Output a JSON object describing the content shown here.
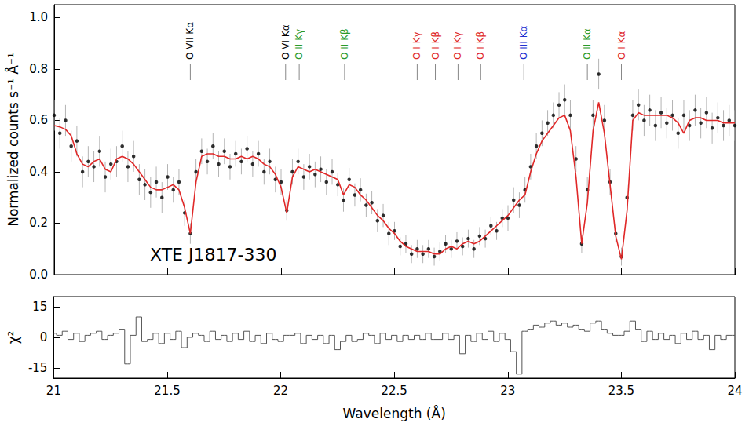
{
  "chart_data": [
    {
      "type": "scatter",
      "y_label": "Normalized counts s⁻¹ Å⁻¹",
      "source": "XTE J1817-330",
      "xlim": [
        21,
        24
      ],
      "xticks": [
        21,
        21.5,
        22,
        22.5,
        23,
        23.5,
        24
      ],
      "ylim": [
        0,
        1.05
      ],
      "yticks": [
        {
          "value": 0,
          "label": "0.0"
        },
        {
          "value": 0.2,
          "label": "0.2"
        },
        {
          "value": 0.4,
          "label": "0.4"
        },
        {
          "value": 0.6,
          "label": "0.6"
        },
        {
          "value": 0.8,
          "label": "0.8"
        },
        {
          "value": 1.0,
          "label": "1.0"
        }
      ],
      "tick_labels": "y",
      "grid": false,
      "x": [
        21.0,
        21.025,
        21.05,
        21.075,
        21.1,
        21.125,
        21.15,
        21.175,
        21.2,
        21.225,
        21.25,
        21.275,
        21.3,
        21.325,
        21.35,
        21.375,
        21.4,
        21.425,
        21.45,
        21.475,
        21.5,
        21.525,
        21.55,
        21.575,
        21.6,
        21.625,
        21.65,
        21.675,
        21.7,
        21.725,
        21.75,
        21.775,
        21.8,
        21.825,
        21.85,
        21.875,
        21.9,
        21.925,
        21.95,
        21.975,
        22.0,
        22.025,
        22.05,
        22.075,
        22.1,
        22.125,
        22.15,
        22.175,
        22.2,
        22.225,
        22.25,
        22.275,
        22.3,
        22.325,
        22.35,
        22.375,
        22.4,
        22.425,
        22.45,
        22.475,
        22.5,
        22.525,
        22.55,
        22.575,
        22.6,
        22.625,
        22.65,
        22.675,
        22.7,
        22.725,
        22.75,
        22.775,
        22.8,
        22.825,
        22.85,
        22.875,
        22.9,
        22.925,
        22.95,
        22.975,
        23.0,
        23.025,
        23.05,
        23.075,
        23.1,
        23.125,
        23.15,
        23.175,
        23.2,
        23.225,
        23.25,
        23.275,
        23.3,
        23.325,
        23.35,
        23.375,
        23.4,
        23.425,
        23.45,
        23.475,
        23.5,
        23.525,
        23.55,
        23.575,
        23.6,
        23.625,
        23.65,
        23.675,
        23.7,
        23.725,
        23.75,
        23.775,
        23.8,
        23.825,
        23.85,
        23.875,
        23.9,
        23.925,
        23.95,
        23.975,
        24.0
      ],
      "series": [
        {
          "type": "scatter",
          "color": "#000000",
          "marker": "circle",
          "values": [
            0.62,
            0.55,
            0.6,
            0.5,
            0.52,
            0.4,
            0.44,
            0.42,
            0.48,
            0.38,
            0.43,
            0.44,
            0.5,
            0.42,
            0.46,
            0.37,
            0.35,
            0.32,
            0.36,
            0.3,
            0.38,
            0.33,
            0.36,
            0.24,
            0.16,
            0.4,
            0.48,
            0.44,
            0.5,
            0.43,
            0.48,
            0.42,
            0.47,
            0.44,
            0.49,
            0.43,
            0.47,
            0.4,
            0.44,
            0.37,
            0.36,
            0.25,
            0.4,
            0.44,
            0.38,
            0.42,
            0.39,
            0.41,
            0.36,
            0.4,
            0.35,
            0.29,
            0.37,
            0.31,
            0.33,
            0.27,
            0.28,
            0.21,
            0.23,
            0.16,
            0.17,
            0.11,
            0.12,
            0.08,
            0.1,
            0.08,
            0.1,
            0.07,
            0.09,
            0.12,
            0.1,
            0.13,
            0.11,
            0.14,
            0.1,
            0.15,
            0.14,
            0.19,
            0.17,
            0.22,
            0.22,
            0.29,
            0.27,
            0.33,
            0.42,
            0.5,
            0.55,
            0.59,
            0.62,
            0.66,
            0.68,
            0.62,
            0.45,
            0.12,
            0.33,
            0.62,
            0.78,
            0.6,
            0.36,
            0.16,
            0.07,
            0.3,
            0.62,
            0.66,
            0.6,
            0.64,
            0.58,
            0.63,
            0.59,
            0.62,
            0.55,
            0.62,
            0.58,
            0.64,
            0.59,
            0.63,
            0.57,
            0.61,
            0.58,
            0.6,
            0.58
          ],
          "errors": [
            0.06,
            0.06,
            0.06,
            0.06,
            0.06,
            0.06,
            0.06,
            0.06,
            0.06,
            0.06,
            0.06,
            0.06,
            0.06,
            0.06,
            0.06,
            0.06,
            0.06,
            0.06,
            0.06,
            0.06,
            0.05,
            0.05,
            0.05,
            0.05,
            0.04,
            0.05,
            0.05,
            0.05,
            0.05,
            0.05,
            0.05,
            0.05,
            0.05,
            0.05,
            0.05,
            0.05,
            0.05,
            0.05,
            0.05,
            0.05,
            0.05,
            0.04,
            0.05,
            0.05,
            0.05,
            0.05,
            0.05,
            0.05,
            0.05,
            0.05,
            0.045,
            0.045,
            0.045,
            0.045,
            0.045,
            0.045,
            0.045,
            0.045,
            0.045,
            0.045,
            0.035,
            0.035,
            0.035,
            0.035,
            0.035,
            0.035,
            0.035,
            0.035,
            0.035,
            0.035,
            0.035,
            0.035,
            0.035,
            0.035,
            0.035,
            0.035,
            0.035,
            0.035,
            0.035,
            0.035,
            0.05,
            0.05,
            0.05,
            0.05,
            0.05,
            0.05,
            0.05,
            0.05,
            0.05,
            0.05,
            0.06,
            0.06,
            0.05,
            0.035,
            0.05,
            0.06,
            0.06,
            0.06,
            0.05,
            0.035,
            0.035,
            0.05,
            0.06,
            0.06,
            0.06,
            0.06,
            0.06,
            0.06,
            0.06,
            0.06,
            0.06,
            0.06,
            0.06,
            0.06,
            0.06,
            0.06,
            0.06,
            0.06,
            0.06,
            0.06,
            0.06
          ]
        },
        {
          "type": "line",
          "color": "#e02828",
          "line_style": "solid",
          "values": [
            0.58,
            0.575,
            0.565,
            0.54,
            0.47,
            0.43,
            0.42,
            0.44,
            0.45,
            0.41,
            0.4,
            0.45,
            0.46,
            0.45,
            0.43,
            0.4,
            0.37,
            0.34,
            0.33,
            0.33,
            0.34,
            0.35,
            0.33,
            0.26,
            0.16,
            0.36,
            0.46,
            0.47,
            0.47,
            0.46,
            0.46,
            0.45,
            0.45,
            0.46,
            0.45,
            0.46,
            0.45,
            0.43,
            0.42,
            0.39,
            0.34,
            0.24,
            0.38,
            0.42,
            0.41,
            0.4,
            0.41,
            0.4,
            0.39,
            0.38,
            0.37,
            0.31,
            0.35,
            0.34,
            0.31,
            0.29,
            0.26,
            0.23,
            0.21,
            0.18,
            0.16,
            0.13,
            0.11,
            0.1,
            0.09,
            0.09,
            0.09,
            0.08,
            0.08,
            0.1,
            0.11,
            0.1,
            0.12,
            0.13,
            0.12,
            0.13,
            0.15,
            0.17,
            0.19,
            0.21,
            0.23,
            0.26,
            0.29,
            0.31,
            0.4,
            0.47,
            0.52,
            0.55,
            0.58,
            0.61,
            0.62,
            0.56,
            0.38,
            0.12,
            0.28,
            0.56,
            0.67,
            0.55,
            0.35,
            0.15,
            0.06,
            0.25,
            0.6,
            0.63,
            0.62,
            0.62,
            0.62,
            0.62,
            0.62,
            0.61,
            0.59,
            0.55,
            0.6,
            0.61,
            0.61,
            0.6,
            0.6,
            0.6,
            0.59,
            0.59,
            0.59
          ]
        }
      ],
      "annotations": [
        {
          "x": 21.6,
          "text": "O VII Kα",
          "color": "#000000"
        },
        {
          "x": 22.02,
          "text": "O VI Kα",
          "color": "#000000"
        },
        {
          "x": 22.08,
          "text": "O II Kγ",
          "color": "#2a9a2a"
        },
        {
          "x": 22.28,
          "text": "O II Kβ",
          "color": "#2a9a2a"
        },
        {
          "x": 22.6,
          "text": "O I Kγ",
          "color": "#e02828"
        },
        {
          "x": 22.68,
          "text": "O I Kβ",
          "color": "#e02828"
        },
        {
          "x": 22.78,
          "text": "O I Kγ",
          "color": "#e02828"
        },
        {
          "x": 22.88,
          "text": "O I Kβ",
          "color": "#e02828"
        },
        {
          "x": 23.07,
          "text": "O III Kα",
          "color": "#2030d0"
        },
        {
          "x": 23.35,
          "text": "O II Kα",
          "color": "#2a9a2a"
        },
        {
          "x": 23.5,
          "text": "O I Kα",
          "color": "#e02828"
        }
      ]
    },
    {
      "type": "line",
      "x_label": "Wavelength (Å)",
      "y_label": "χ²",
      "xlim": [
        21,
        24
      ],
      "xticks": [
        21,
        21.5,
        22,
        22.5,
        23,
        23.5,
        24
      ],
      "ylim": [
        -20,
        20
      ],
      "yticks": [
        -15,
        0,
        15
      ],
      "grid": false,
      "x": [
        21.0,
        21.025,
        21.05,
        21.075,
        21.1,
        21.125,
        21.15,
        21.175,
        21.2,
        21.225,
        21.25,
        21.275,
        21.3,
        21.325,
        21.35,
        21.375,
        21.4,
        21.425,
        21.45,
        21.475,
        21.5,
        21.525,
        21.55,
        21.575,
        21.6,
        21.625,
        21.65,
        21.675,
        21.7,
        21.725,
        21.75,
        21.775,
        21.8,
        21.825,
        21.85,
        21.875,
        21.9,
        21.925,
        21.95,
        21.975,
        22.0,
        22.025,
        22.05,
        22.075,
        22.1,
        22.125,
        22.15,
        22.175,
        22.2,
        22.225,
        22.25,
        22.275,
        22.3,
        22.325,
        22.35,
        22.375,
        22.4,
        22.425,
        22.45,
        22.475,
        22.5,
        22.525,
        22.55,
        22.575,
        22.6,
        22.625,
        22.65,
        22.675,
        22.7,
        22.725,
        22.75,
        22.775,
        22.8,
        22.825,
        22.85,
        22.875,
        22.9,
        22.925,
        22.95,
        22.975,
        23.0,
        23.025,
        23.05,
        23.075,
        23.1,
        23.125,
        23.15,
        23.175,
        23.2,
        23.225,
        23.25,
        23.275,
        23.3,
        23.325,
        23.35,
        23.375,
        23.4,
        23.425,
        23.45,
        23.475,
        23.5,
        23.525,
        23.55,
        23.575,
        23.6,
        23.625,
        23.65,
        23.675,
        23.7,
        23.725,
        23.75,
        23.775,
        23.8,
        23.825,
        23.85,
        23.875,
        23.9,
        23.925,
        23.95,
        23.975,
        24.0
      ],
      "series": [
        {
          "type": "line",
          "color": "#555555",
          "line_style": "step",
          "values": [
            2,
            1,
            3,
            -1,
            2,
            -2,
            1,
            2,
            3,
            -1,
            1,
            2,
            4,
            -13,
            1,
            10,
            -2,
            -1,
            2,
            -3,
            2,
            -1,
            3,
            -5,
            0,
            2,
            1,
            -2,
            3,
            -1,
            1,
            -2,
            2,
            -1,
            3,
            -2,
            1,
            -3,
            2,
            -1,
            -2,
            1,
            1,
            2,
            -3,
            1,
            -1,
            1,
            -3,
            1,
            -6,
            -2,
            1,
            -2,
            -1,
            2,
            1,
            -3,
            2,
            -1,
            1,
            -2,
            1,
            -1,
            1,
            -1,
            2,
            -1,
            -1,
            2,
            -1,
            1,
            -8,
            1,
            -2,
            2,
            -1,
            3,
            -2,
            2,
            -1,
            -7,
            -18,
            3,
            4,
            6,
            5,
            7,
            8,
            6,
            7,
            5,
            6,
            4,
            3,
            7,
            8,
            4,
            2,
            1,
            1,
            3,
            8,
            4,
            -2,
            3,
            -1,
            2,
            -1,
            1,
            -3,
            2,
            -1,
            3,
            -1,
            1,
            -6,
            1,
            -1,
            1,
            1
          ]
        }
      ]
    }
  ]
}
